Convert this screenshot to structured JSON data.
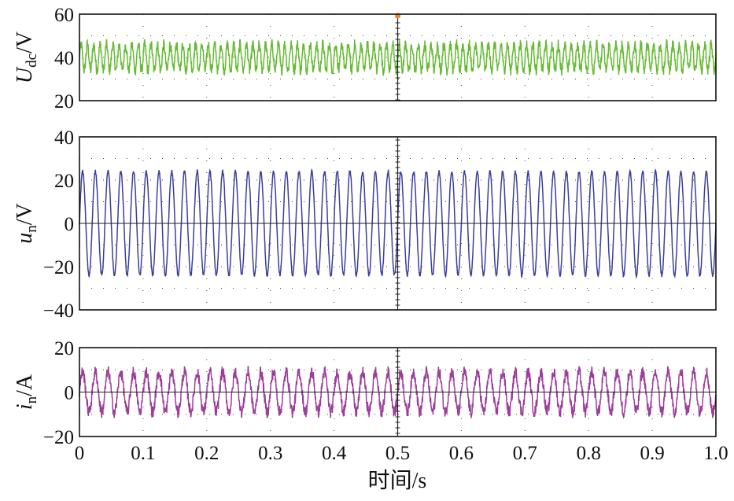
{
  "chart_data": [
    {
      "type": "line",
      "ylabel_main": "U",
      "ylabel_sub": "dc",
      "ylabel_unit": "/V",
      "ylim": [
        20,
        60
      ],
      "yticks": [
        20,
        40,
        60
      ],
      "xlim": [
        0,
        1.0
      ],
      "grid": "dotted",
      "series": [
        {
          "color": "#66bb33",
          "mean": 40,
          "amplitude": 6,
          "ripple_frequency_hz": 100,
          "noise": 2.5
        }
      ],
      "annotations": [
        {
          "x": 0.5,
          "y": 60,
          "marker": "dot",
          "color": "#e8882a"
        }
      ]
    },
    {
      "type": "line",
      "ylabel_main": "u",
      "ylabel_sub": "n",
      "ylabel_unit": "/V",
      "ylim": [
        -40,
        40
      ],
      "yticks": [
        -40,
        -20,
        0,
        20,
        40
      ],
      "xlim": [
        0,
        1.0
      ],
      "grid": "dotted",
      "series": [
        {
          "color": "#3b3f9a",
          "amplitude": 24,
          "frequency_hz": 50,
          "noise": 0.8
        }
      ]
    },
    {
      "type": "line",
      "ylabel_main": "i",
      "ylabel_sub": "n",
      "ylabel_unit": "/A",
      "ylim": [
        -20,
        20
      ],
      "yticks": [
        -20,
        0,
        20
      ],
      "xlim": [
        0,
        1.0
      ],
      "xticks": [
        "0",
        "0.1",
        "0.2",
        "0.3",
        "0.4",
        "0.5",
        "0.6",
        "0.7",
        "0.8",
        "0.9",
        "1.0"
      ],
      "xlabel": "时间/s",
      "grid": "dotted",
      "series": [
        {
          "color": "#9c3f9a",
          "amplitude": 9,
          "frequency_hz": 50,
          "noise": 2.8
        }
      ]
    }
  ]
}
